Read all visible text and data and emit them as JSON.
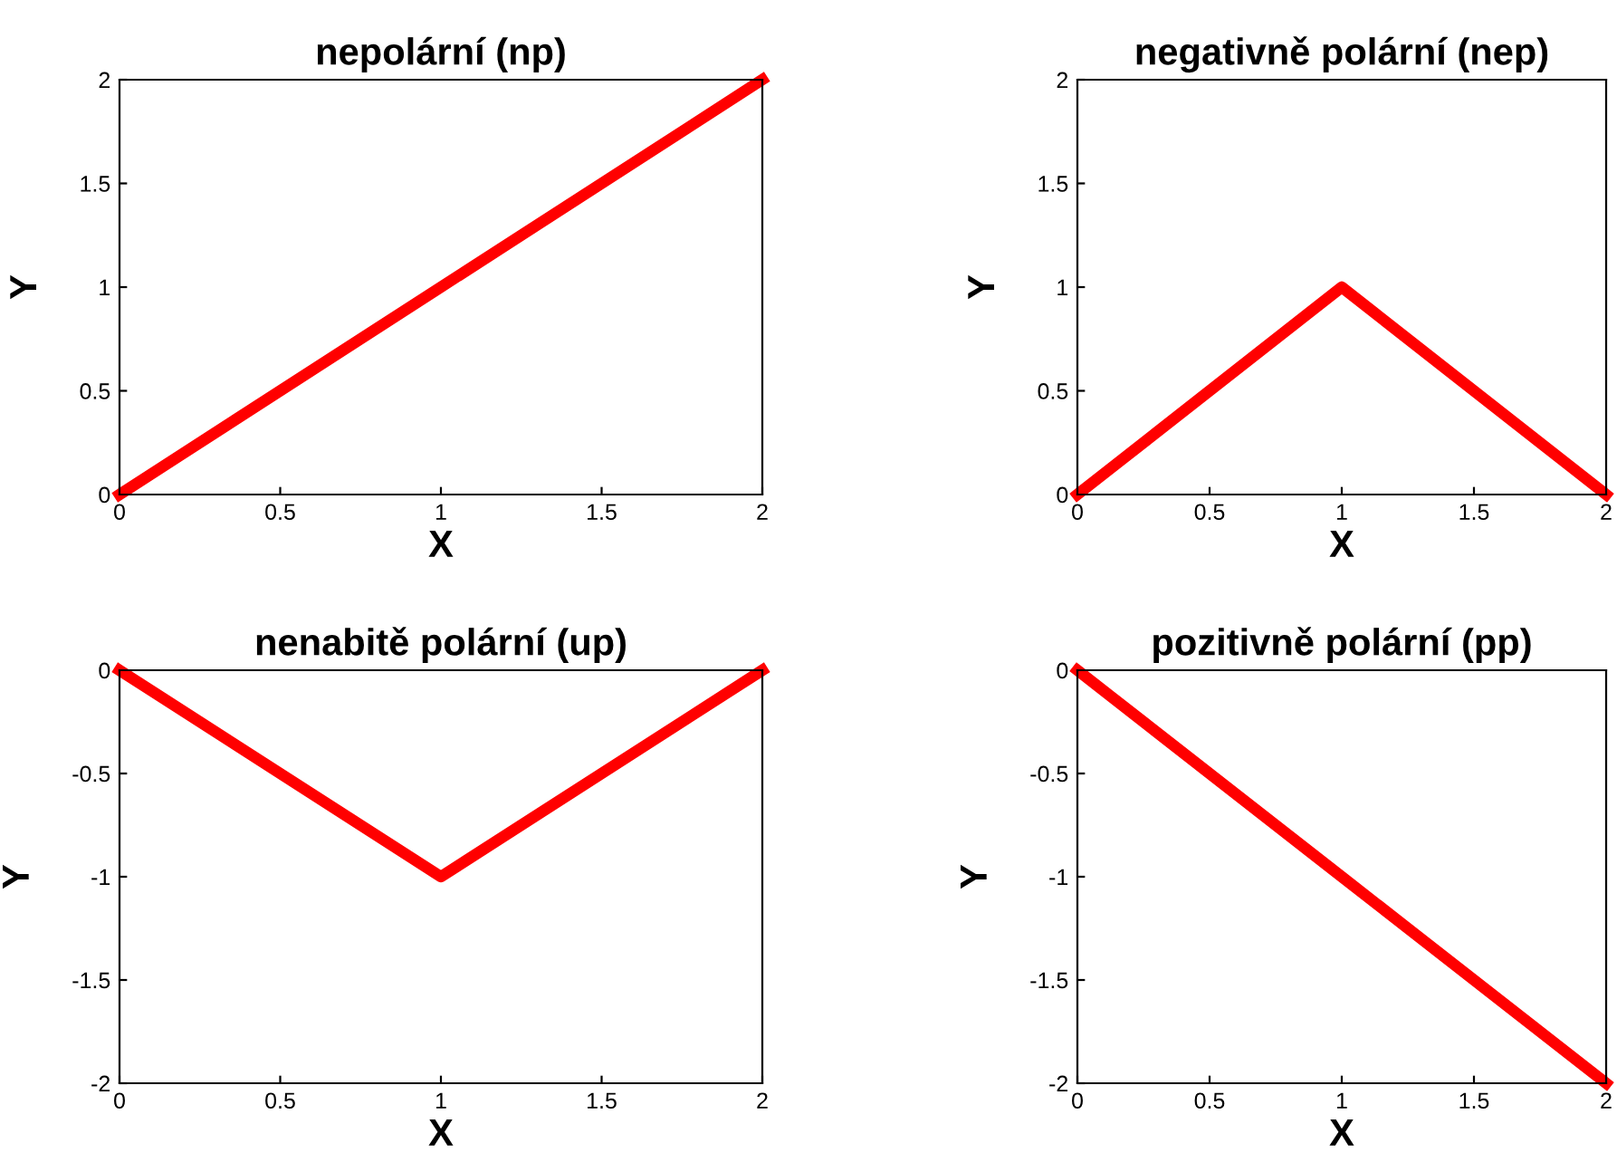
{
  "chart_data": [
    {
      "type": "line",
      "title": "nepolární (np)",
      "xlabel": "X",
      "ylabel": "Y",
      "x": [
        0,
        1,
        2
      ],
      "series": [
        {
          "color": "#ff0000",
          "values": [
            0,
            1,
            2
          ]
        }
      ],
      "xlim": [
        0,
        2
      ],
      "ylim": [
        0,
        2
      ],
      "xticks": [
        0,
        0.5,
        1,
        1.5,
        2
      ],
      "yticks": [
        0,
        0.5,
        1,
        1.5,
        2
      ],
      "grid": false,
      "line_style": "solid"
    },
    {
      "type": "line",
      "title": "negativně polární (nep)",
      "xlabel": "X",
      "ylabel": "Y",
      "x": [
        0,
        1,
        2
      ],
      "series": [
        {
          "color": "#ff0000",
          "values": [
            0,
            1,
            0
          ]
        }
      ],
      "xlim": [
        0,
        2
      ],
      "ylim": [
        0,
        2
      ],
      "xticks": [
        0,
        0.5,
        1,
        1.5,
        2
      ],
      "yticks": [
        0,
        0.5,
        1,
        1.5,
        2
      ],
      "grid": false,
      "line_style": "solid"
    },
    {
      "type": "line",
      "title": "nenabitě polární (up)",
      "xlabel": "X",
      "ylabel": "Y",
      "x": [
        0,
        1,
        2
      ],
      "series": [
        {
          "color": "#ff0000",
          "values": [
            0,
            -1,
            0
          ]
        }
      ],
      "xlim": [
        0,
        2
      ],
      "ylim": [
        -2,
        0
      ],
      "xticks": [
        0,
        0.5,
        1,
        1.5,
        2
      ],
      "yticks": [
        -2,
        -1.5,
        -1,
        -0.5,
        0
      ],
      "grid": false,
      "line_style": "solid"
    },
    {
      "type": "line",
      "title": "pozitivně polární (pp)",
      "xlabel": "X",
      "ylabel": "Y",
      "x": [
        0,
        1,
        2
      ],
      "series": [
        {
          "color": "#ff0000",
          "values": [
            0,
            -1,
            -2
          ]
        }
      ],
      "xlim": [
        0,
        2
      ],
      "ylim": [
        -2,
        0
      ],
      "xticks": [
        0,
        0.5,
        1,
        1.5,
        2
      ],
      "yticks": [
        -2,
        -1.5,
        -1,
        -0.5,
        0
      ],
      "grid": false,
      "line_style": "solid"
    }
  ]
}
